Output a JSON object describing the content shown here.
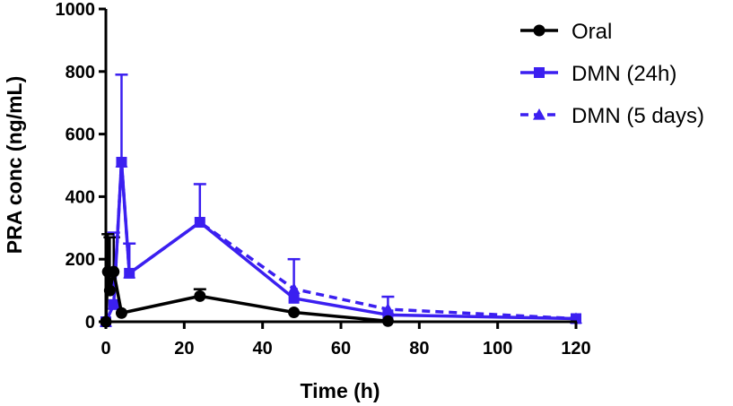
{
  "chart_data": {
    "type": "line",
    "title": "",
    "xlabel": "Time (h)",
    "ylabel": "PRA conc (ng/mL)",
    "xlim": [
      0,
      120
    ],
    "ylim": [
      0,
      1000
    ],
    "x_ticks": [
      0,
      20,
      40,
      60,
      80,
      100,
      120
    ],
    "x_tick_labels": [
      "0",
      "20",
      "40",
      "60",
      "80",
      "100",
      "120"
    ],
    "y_ticks": [
      0,
      200,
      400,
      600,
      800,
      1000
    ],
    "y_tick_labels": [
      "0",
      "200",
      "400",
      "600",
      "800",
      "1000"
    ],
    "grid": false,
    "legend_position": "top-right",
    "series": [
      {
        "name": "Oral",
        "color": "#000000",
        "marker": "circle",
        "line_style": "solid",
        "x": [
          0,
          0.5,
          1,
          2,
          4,
          24,
          48,
          72
        ],
        "y": [
          0,
          160,
          100,
          160,
          28,
          82,
          30,
          2
        ],
        "error": [
          0,
          120,
          170,
          110,
          0,
          22,
          0,
          0
        ]
      },
      {
        "name": "DMN (24h)",
        "color": "#3b1ff0",
        "marker": "square",
        "line_style": "solid",
        "x": [
          0,
          2,
          4,
          6,
          24,
          48,
          72,
          120
        ],
        "y": [
          0,
          55,
          510,
          155,
          318,
          75,
          22,
          10
        ],
        "error": [
          0,
          230,
          280,
          95,
          122,
          0,
          0,
          0
        ]
      },
      {
        "name": "DMN (5 days)",
        "color": "#3b1ff0",
        "marker": "triangle",
        "line_style": "dashed",
        "x": [
          0,
          2,
          4,
          6,
          24,
          48,
          72,
          120
        ],
        "y": [
          0,
          55,
          510,
          155,
          318,
          105,
          40,
          10
        ],
        "error": [
          0,
          0,
          0,
          0,
          0,
          95,
          40,
          0
        ]
      }
    ]
  }
}
